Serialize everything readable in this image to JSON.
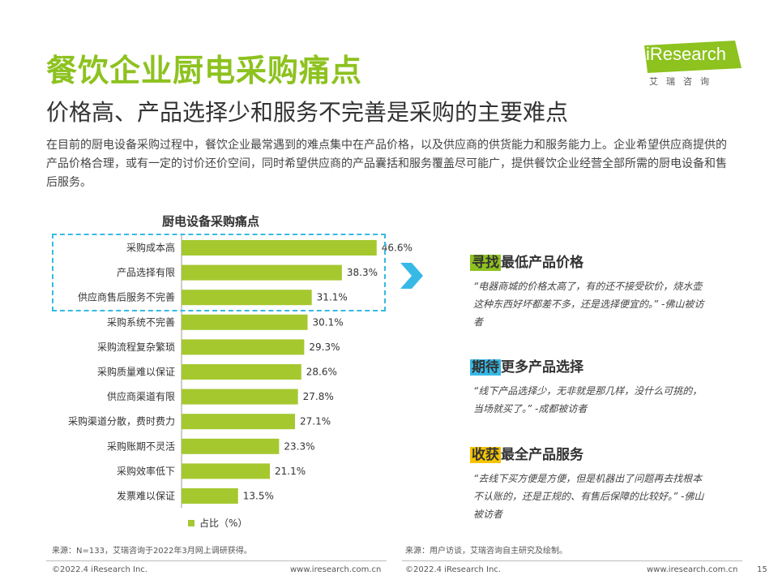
{
  "title": "餐饮企业厨电采购痛点",
  "subtitle": "价格高、产品选择少和服务不完善是采购的主要难点",
  "intro": "在目前的厨电设备采购过程中，餐饮企业最常遇到的难点集中在产品价格，以及供应商的供货能力和服务能力上。企业希望供应商提供的产品价格合理，或有一定的讨价还价空间，同时希望供应商的产品囊括和服务覆盖尽可能广，提供餐饮企业经营全部所需的厨电设备和售后服务。",
  "logo": {
    "text": "iResearch",
    "cn": "艾瑞咨询"
  },
  "chart_data": {
    "type": "bar",
    "orientation": "horizontal",
    "title": "厨电设备采购痛点",
    "categories": [
      "采购成本高",
      "产品选择有限",
      "供应商售后服务不完善",
      "采购系统不完善",
      "采购流程复杂繁琐",
      "采购质量难以保证",
      "供应商渠道有限",
      "采购渠道分散，费时费力",
      "采购账期不灵活",
      "采购效率低下",
      "发票难以保证"
    ],
    "series": [
      {
        "name": "占比（%）",
        "values": [
          46.6,
          38.3,
          31.1,
          30.1,
          29.3,
          28.6,
          27.8,
          27.1,
          23.3,
          21.1,
          13.5
        ]
      }
    ],
    "value_labels": [
      "46.6%",
      "38.3%",
      "31.1%",
      "30.1%",
      "29.3%",
      "28.6%",
      "27.8%",
      "27.1%",
      "23.3%",
      "21.1%",
      "13.5%"
    ],
    "xlim": [
      0,
      60
    ],
    "bar_color": "#a5c82f",
    "highlight_color": "#37b9e6",
    "highlight_top_n": 3,
    "legend": "bottom"
  },
  "cards": [
    {
      "highlight": "寻找",
      "rest": "最低产品价格",
      "hl_color": "#8dc21f",
      "quote": "“电器商城的价格太高了，有的还不接受砍价，烧水壶这种东西好坏都差不多，还是选择便宜的。” -佛山被访者"
    },
    {
      "highlight": "期待",
      "rest": "更多产品选择",
      "hl_color": "#37b9e6",
      "quote": "“线下产品选择少，无非就是那几样，没什么可挑的，当场就买了。” -成都被访者"
    },
    {
      "highlight": "收获",
      "rest": "最全产品服务",
      "hl_color": "#f5c400",
      "quote": "“去线下买方便是方便，但是机器出了问题再去找根本不认账的，还是正规的、有售后保障的比较好。” -佛山被访者"
    }
  ],
  "footer": {
    "source_left": "来源：N=133，艾瑞咨询于2022年3月网上调研获得。",
    "source_right": "来源：用户访谈，艾瑞咨询自主研究及绘制。",
    "copyright_left": "©2022.4 iResearch Inc.",
    "url_left": "www.iresearch.com.cn",
    "copyright_right": "©2022.4 iResearch Inc.",
    "url_right": "www.iresearch.com.cn",
    "page": "15"
  },
  "colors": {
    "title_green": "#8dc21f",
    "accent_blue": "#37b9e6",
    "accent_yellow": "#f5c400"
  }
}
